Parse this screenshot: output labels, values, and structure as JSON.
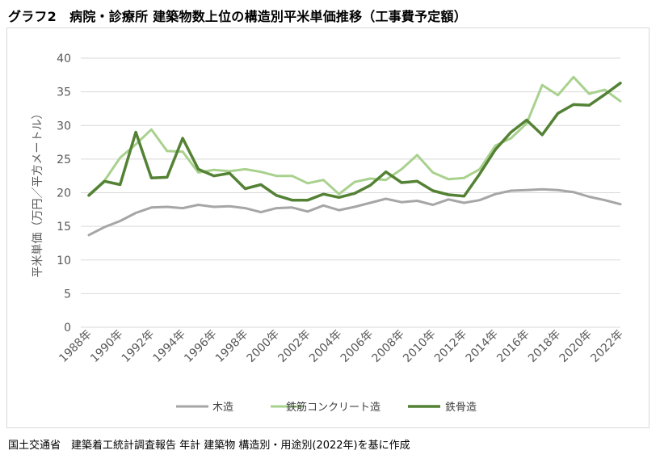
{
  "title": "グラフ2　病院・診療所 建築物数上位の構造別平米単価推移（工事費予定額）",
  "source": "国土交通省　建築着工統計調査報告 年計 建築物 構造別・用途別(2022年)を基に作成",
  "colors": {
    "grid": "#d9d9d9",
    "axis": "#595959"
  },
  "chart_data": {
    "type": "line",
    "title": "グラフ2　病院・診療所 建築物数上位の構造別平米単価推移（工事費予定額）",
    "xlabel": "",
    "ylabel": "平米単価（万円／平方メートル）",
    "ylim": [
      0,
      40
    ],
    "yticks": [
      0,
      5,
      10,
      15,
      20,
      25,
      30,
      35,
      40
    ],
    "grid": true,
    "legend_position": "bottom",
    "categories": [
      "1988年",
      "1989年",
      "1990年",
      "1991年",
      "1992年",
      "1993年",
      "1994年",
      "1995年",
      "1996年",
      "1997年",
      "1998年",
      "1999年",
      "2000年",
      "2001年",
      "2002年",
      "2003年",
      "2004年",
      "2005年",
      "2006年",
      "2007年",
      "2008年",
      "2009年",
      "2010年",
      "2011年",
      "2012年",
      "2013年",
      "2014年",
      "2015年",
      "2016年",
      "2017年",
      "2018年",
      "2019年",
      "2020年",
      "2021年",
      "2022年"
    ],
    "xtick_labels": [
      "1988年",
      "1990年",
      "1992年",
      "1994年",
      "1996年",
      "1998年",
      "2000年",
      "2002年",
      "2004年",
      "2006年",
      "2008年",
      "2010年",
      "2012年",
      "2014年",
      "2016年",
      "2018年",
      "2020年",
      "2022年"
    ],
    "series": [
      {
        "name": "木造",
        "color": "#a6a6a6",
        "width": 3,
        "values": [
          13.7,
          14.9,
          15.8,
          17.0,
          17.8,
          17.9,
          17.7,
          18.2,
          17.9,
          18.0,
          17.7,
          17.1,
          17.7,
          17.8,
          17.2,
          18.1,
          17.4,
          17.9,
          18.5,
          19.1,
          18.6,
          18.8,
          18.2,
          19.0,
          18.5,
          18.9,
          19.8,
          20.3,
          20.4,
          20.5,
          20.4,
          20.1,
          19.4,
          18.9,
          18.3
        ]
      },
      {
        "name": "鉄筋コンクリート造",
        "color": "#a9d18e",
        "width": 3,
        "values": [
          19.7,
          21.8,
          25.2,
          27.2,
          29.4,
          26.2,
          26.1,
          23.0,
          23.4,
          23.2,
          23.5,
          23.1,
          22.5,
          22.5,
          21.4,
          21.9,
          19.8,
          21.6,
          22.1,
          21.9,
          23.5,
          25.6,
          23.0,
          22.0,
          22.2,
          23.5,
          27.0,
          28.1,
          30.3,
          36.0,
          34.5,
          37.2,
          34.7,
          35.3,
          33.6
        ]
      },
      {
        "name": "鉄骨造",
        "color": "#548235",
        "width": 3.5,
        "values": [
          19.6,
          21.7,
          21.2,
          29.0,
          22.2,
          22.3,
          28.1,
          23.5,
          22.5,
          22.9,
          20.6,
          21.2,
          19.6,
          18.9,
          18.9,
          19.8,
          19.3,
          19.9,
          21.1,
          23.1,
          21.5,
          21.7,
          20.3,
          19.7,
          19.5,
          22.8,
          26.4,
          29.0,
          30.8,
          28.6,
          31.8,
          33.1,
          33.0,
          34.6,
          36.3
        ]
      }
    ]
  }
}
